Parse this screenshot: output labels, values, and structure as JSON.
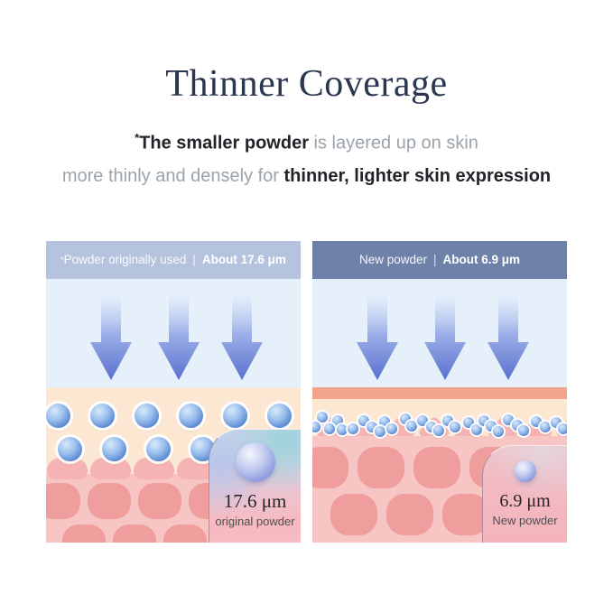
{
  "title": "Thinner Coverage",
  "description": {
    "line1": {
      "mark": "*",
      "bold": "The smaller powder",
      "rest": " is layered up on skin"
    },
    "line2": {
      "start": "more thinly and densely for ",
      "bold": "thinner, lighter skin expression"
    }
  },
  "panels": {
    "original": {
      "header": {
        "mark": "*",
        "label": "Powder originally used",
        "separator": "|",
        "value": "About 17.6 μm"
      },
      "callout": {
        "value": "17.6 μm",
        "label": "original powder"
      },
      "particle_size_um": 17.6
    },
    "new": {
      "header": {
        "mark": "",
        "label": "New powder",
        "separator": "|",
        "value": "About 6.9 μm"
      },
      "callout": {
        "value": "6.9 μm",
        "label": "New powder"
      },
      "particle_size_um": 6.9
    }
  },
  "colors": {
    "title_text": "#2b3750",
    "text_dark": "#212428",
    "text_gray": "#9ba3ab",
    "header_original_bg": "#b6c3de",
    "header_new_bg": "#6e81a9",
    "header_text": "#ffffff",
    "sky": "#e5f0fb",
    "peach": "#fce7d2",
    "salmon_stripe": "#f2a48c",
    "skin_base": "#f8c5c5",
    "skin_bump": "#f5b3b3",
    "skin_cell": "#f09d9d",
    "arrow_top": "#e3ecfb",
    "arrow_bottom": "#5a70ce",
    "particle_main": "#5b8ad2",
    "callout_text": "#27282a"
  }
}
